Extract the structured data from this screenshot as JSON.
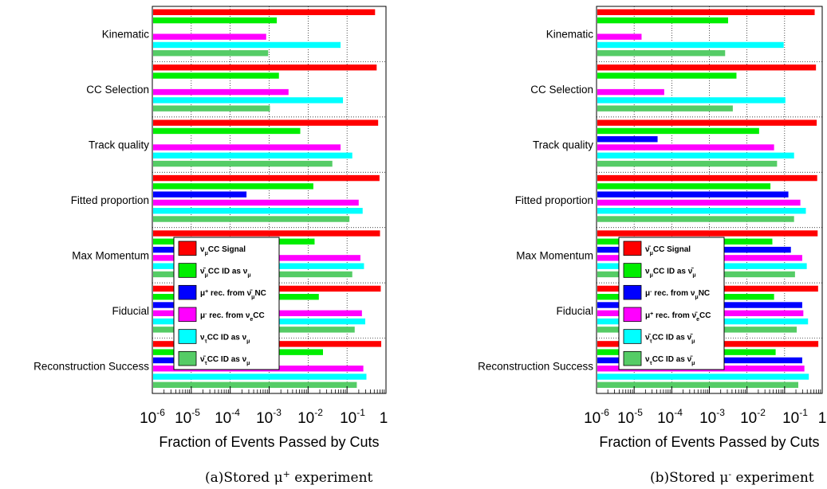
{
  "chart_data": [
    {
      "type": "bar",
      "orientation": "horizontal",
      "caption": "(a)Stored μ⁺ experiment",
      "xlabel": "Fraction of Events Passed by Cuts",
      "xscale": "log",
      "xlim": [
        1e-06,
        1
      ],
      "x_tick_labels": [
        "10-6",
        "10-5",
        "10-4",
        "10-3",
        "10-2",
        "10-1",
        "1"
      ],
      "grid": "dotted",
      "legend_position": "center",
      "categories": [
        "Kinematic",
        "CC Selection",
        "Track quality",
        "Fitted proportion",
        "Max Momentum",
        "Fiducial",
        "Reconstruction Success"
      ],
      "series": [
        {
          "name": "νμCC Signal",
          "color": "#ff0000",
          "values": [
            0.5,
            0.55,
            0.6,
            0.65,
            0.67,
            0.7,
            0.72
          ]
        },
        {
          "name": "ν̄μCC ID as νμ",
          "color": "#00ee00",
          "values": [
            0.0015,
            0.0017,
            0.006,
            0.013,
            0.014,
            0.018,
            0.023
          ]
        },
        {
          "name": "μ⁺ rec. from ν̄μNC",
          "color": "#0000ff",
          "values": [
            null,
            null,
            null,
            0.00025,
            0.0005,
            0.0008,
            0.0008
          ]
        },
        {
          "name": "μ⁻ rec. from νeCC",
          "color": "#ff00ff",
          "values": [
            0.0008,
            0.003,
            0.065,
            0.19,
            0.21,
            0.23,
            0.25
          ]
        },
        {
          "name": "ντCC ID as νμ",
          "color": "#00ffff",
          "values": [
            0.065,
            0.075,
            0.13,
            0.24,
            0.26,
            0.28,
            0.3
          ]
        },
        {
          "name": "ν̄τCC ID as νμ",
          "color": "#55cc66",
          "values": [
            0.0009,
            0.001,
            0.04,
            0.11,
            0.13,
            0.15,
            0.17
          ]
        }
      ]
    },
    {
      "type": "bar",
      "orientation": "horizontal",
      "caption": "(b)Stored μ⁻ experiment",
      "xlabel": "Fraction of Events Passed by Cuts",
      "xscale": "log",
      "xlim": [
        1e-06,
        1
      ],
      "x_tick_labels": [
        "10-6",
        "10-5",
        "10-4",
        "10-3",
        "10-2",
        "10-1",
        "1"
      ],
      "grid": "dotted",
      "legend_position": "center",
      "categories": [
        "Kinematic",
        "CC Selection",
        "Track quality",
        "Fitted proportion",
        "Max Momentum",
        "Fiducial",
        "Reconstruction Success"
      ],
      "series": [
        {
          "name": "ν̄μCC Signal",
          "color": "#ff0000",
          "values": [
            0.6,
            0.65,
            0.68,
            0.7,
            0.72,
            0.74,
            0.75
          ]
        },
        {
          "name": "νμCC ID as ν̄μ",
          "color": "#00ee00",
          "values": [
            0.003,
            0.005,
            0.02,
            0.04,
            0.045,
            0.05,
            0.055
          ]
        },
        {
          "name": "μ⁻ rec. from νμNC",
          "color": "#0000ff",
          "values": [
            null,
            null,
            4e-05,
            0.12,
            0.14,
            0.28,
            0.28
          ]
        },
        {
          "name": "μ⁺ rec. from ν̄eCC",
          "color": "#ff00ff",
          "values": [
            1.5e-05,
            6e-05,
            0.05,
            0.25,
            0.28,
            0.3,
            0.32
          ]
        },
        {
          "name": "ν̄τCC ID as ν̄μ",
          "color": "#00ffff",
          "values": [
            0.09,
            0.1,
            0.17,
            0.35,
            0.37,
            0.4,
            0.42
          ]
        },
        {
          "name": "ντCC ID as ν̄μ",
          "color": "#55cc66",
          "values": [
            0.0025,
            0.004,
            0.06,
            0.17,
            0.18,
            0.2,
            0.22
          ]
        }
      ]
    }
  ]
}
